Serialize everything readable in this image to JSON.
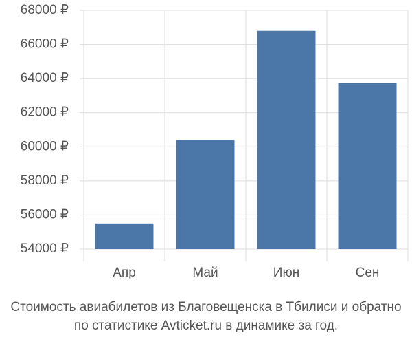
{
  "chart_data": {
    "type": "bar",
    "title": "Стоимость авиабилетов из Благовещенска в Тбилиси и обратно",
    "subtitle": "по статистике Avticket.ru в динамике за год.",
    "categories": [
      "Апр",
      "Май",
      "Июн",
      "Сен"
    ],
    "values": [
      55500,
      60400,
      66800,
      63750
    ],
    "color": "#4a76a8",
    "ylim": [
      54000,
      68000
    ],
    "yticks": [
      {
        "value": 54000,
        "label": "54000 ₽"
      },
      {
        "value": 56000,
        "label": "56000 ₽"
      },
      {
        "value": 58000,
        "label": "58000 ₽"
      },
      {
        "value": 60000,
        "label": "60000 ₽"
      },
      {
        "value": 62000,
        "label": "62000 ₽"
      },
      {
        "value": 64000,
        "label": "64000 ₽"
      },
      {
        "value": 66000,
        "label": "66000 ₽"
      },
      {
        "value": 68000,
        "label": "68000 ₽"
      }
    ],
    "grid": true
  }
}
